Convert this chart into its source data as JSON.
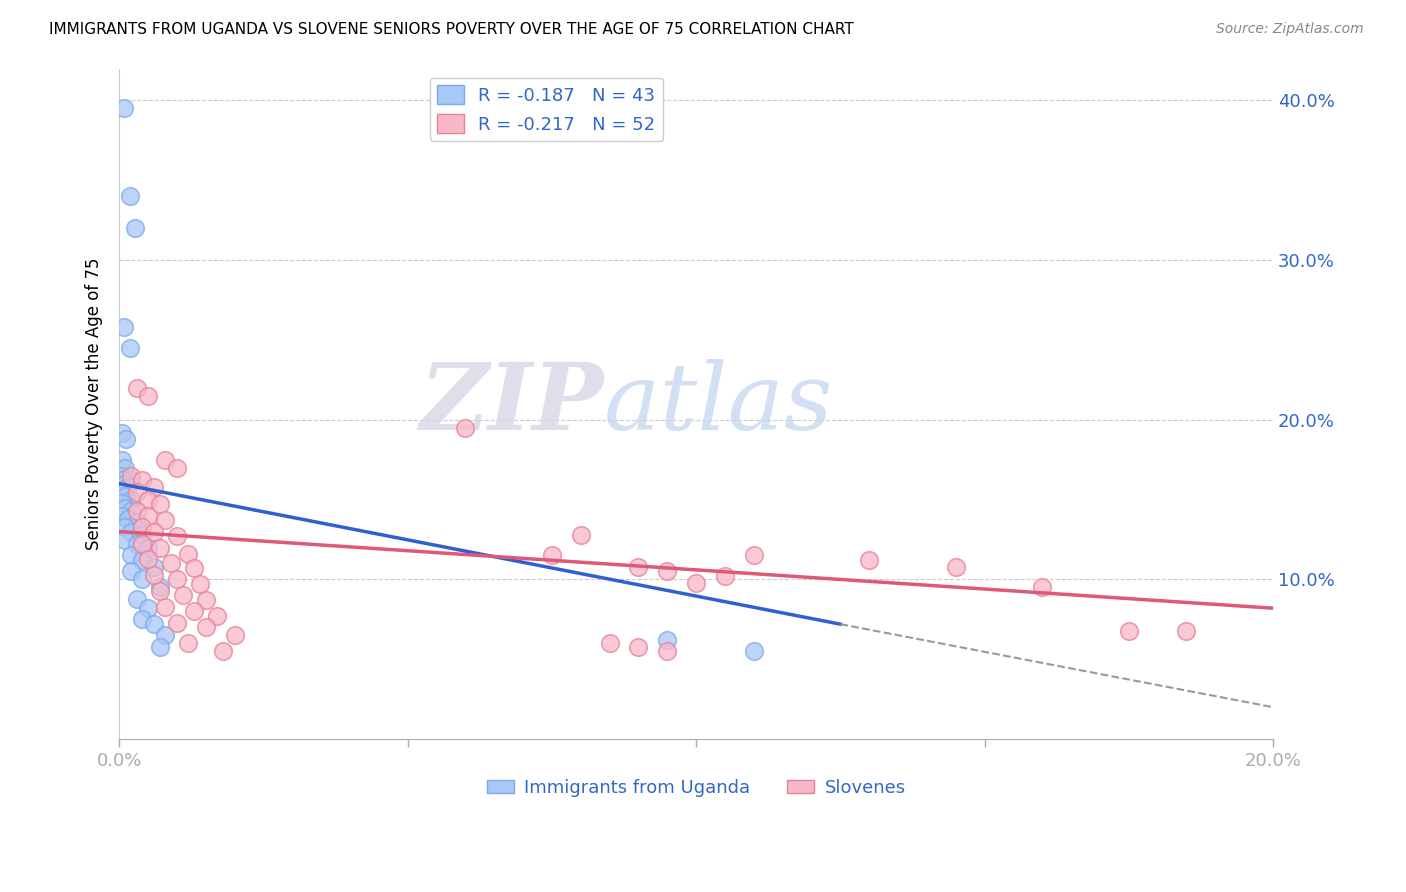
{
  "title": "IMMIGRANTS FROM UGANDA VS SLOVENE SENIORS POVERTY OVER THE AGE OF 75 CORRELATION CHART",
  "source": "Source: ZipAtlas.com",
  "ylabel": "Seniors Poverty Over the Age of 75",
  "xlim": [
    0.0,
    0.2
  ],
  "ylim": [
    0.0,
    0.42
  ],
  "xticks": [
    0.0,
    0.05,
    0.1,
    0.15,
    0.2
  ],
  "xtick_labels": [
    "0.0%",
    "",
    "",
    "",
    "20.0%"
  ],
  "yticks": [
    0.0,
    0.1,
    0.2,
    0.3,
    0.4
  ],
  "ytick_labels_right": [
    "",
    "10.0%",
    "20.0%",
    "30.0%",
    "40.0%"
  ],
  "uganda_color": "#a8c8f8",
  "uganda_edge_color": "#7aaae8",
  "slovene_color": "#f8b8c8",
  "slovene_edge_color": "#e88098",
  "uganda_R": -0.187,
  "uganda_N": 43,
  "slovene_R": -0.217,
  "slovene_N": 52,
  "legend_label_uganda": "Immigrants from Uganda",
  "legend_label_slovene": "Slovenes",
  "watermark_zip": "ZIP",
  "watermark_atlas": "atlas",
  "uganda_line_x0": 0.0,
  "uganda_line_y0": 0.16,
  "uganda_line_x1": 0.125,
  "uganda_line_y1": 0.072,
  "uganda_line_color": "#3060d0",
  "slovene_line_x0": 0.0,
  "slovene_line_y0": 0.13,
  "slovene_line_x1": 0.2,
  "slovene_line_y1": 0.082,
  "slovene_line_color": "#e05878",
  "dash_line_x0": 0.125,
  "dash_line_y0": 0.072,
  "dash_line_x1": 0.2,
  "dash_line_y1": 0.02,
  "dash_color": "#999999",
  "uganda_points": [
    [
      0.0008,
      0.395
    ],
    [
      0.0018,
      0.34
    ],
    [
      0.0028,
      0.32
    ],
    [
      0.0008,
      0.258
    ],
    [
      0.0018,
      0.245
    ],
    [
      0.0005,
      0.192
    ],
    [
      0.0012,
      0.188
    ],
    [
      0.0005,
      0.175
    ],
    [
      0.001,
      0.17
    ],
    [
      0.0005,
      0.165
    ],
    [
      0.001,
      0.163
    ],
    [
      0.002,
      0.162
    ],
    [
      0.001,
      0.16
    ],
    [
      0.0015,
      0.158
    ],
    [
      0.0005,
      0.155
    ],
    [
      0.001,
      0.152
    ],
    [
      0.002,
      0.15
    ],
    [
      0.0005,
      0.148
    ],
    [
      0.001,
      0.145
    ],
    [
      0.002,
      0.143
    ],
    [
      0.0005,
      0.14
    ],
    [
      0.0015,
      0.138
    ],
    [
      0.003,
      0.136
    ],
    [
      0.001,
      0.133
    ],
    [
      0.002,
      0.13
    ],
    [
      0.004,
      0.128
    ],
    [
      0.001,
      0.125
    ],
    [
      0.003,
      0.122
    ],
    [
      0.005,
      0.12
    ],
    [
      0.002,
      0.115
    ],
    [
      0.004,
      0.112
    ],
    [
      0.006,
      0.108
    ],
    [
      0.002,
      0.105
    ],
    [
      0.004,
      0.1
    ],
    [
      0.007,
      0.095
    ],
    [
      0.003,
      0.088
    ],
    [
      0.005,
      0.082
    ],
    [
      0.004,
      0.075
    ],
    [
      0.006,
      0.072
    ],
    [
      0.008,
      0.065
    ],
    [
      0.007,
      0.058
    ],
    [
      0.095,
      0.062
    ],
    [
      0.11,
      0.055
    ]
  ],
  "slovene_points": [
    [
      0.003,
      0.22
    ],
    [
      0.005,
      0.215
    ],
    [
      0.008,
      0.175
    ],
    [
      0.01,
      0.17
    ],
    [
      0.002,
      0.165
    ],
    [
      0.004,
      0.162
    ],
    [
      0.006,
      0.158
    ],
    [
      0.003,
      0.155
    ],
    [
      0.005,
      0.15
    ],
    [
      0.007,
      0.147
    ],
    [
      0.003,
      0.143
    ],
    [
      0.005,
      0.14
    ],
    [
      0.008,
      0.137
    ],
    [
      0.004,
      0.133
    ],
    [
      0.006,
      0.13
    ],
    [
      0.01,
      0.127
    ],
    [
      0.004,
      0.122
    ],
    [
      0.007,
      0.12
    ],
    [
      0.012,
      0.116
    ],
    [
      0.005,
      0.113
    ],
    [
      0.009,
      0.11
    ],
    [
      0.013,
      0.107
    ],
    [
      0.006,
      0.103
    ],
    [
      0.01,
      0.1
    ],
    [
      0.014,
      0.097
    ],
    [
      0.007,
      0.093
    ],
    [
      0.011,
      0.09
    ],
    [
      0.015,
      0.087
    ],
    [
      0.008,
      0.083
    ],
    [
      0.013,
      0.08
    ],
    [
      0.017,
      0.077
    ],
    [
      0.01,
      0.073
    ],
    [
      0.015,
      0.07
    ],
    [
      0.02,
      0.065
    ],
    [
      0.012,
      0.06
    ],
    [
      0.018,
      0.055
    ],
    [
      0.06,
      0.195
    ],
    [
      0.075,
      0.115
    ],
    [
      0.08,
      0.128
    ],
    [
      0.09,
      0.108
    ],
    [
      0.095,
      0.105
    ],
    [
      0.1,
      0.098
    ],
    [
      0.105,
      0.102
    ],
    [
      0.11,
      0.115
    ],
    [
      0.085,
      0.06
    ],
    [
      0.09,
      0.058
    ],
    [
      0.095,
      0.055
    ],
    [
      0.13,
      0.112
    ],
    [
      0.145,
      0.108
    ],
    [
      0.16,
      0.095
    ],
    [
      0.175,
      0.068
    ],
    [
      0.185,
      0.068
    ]
  ]
}
